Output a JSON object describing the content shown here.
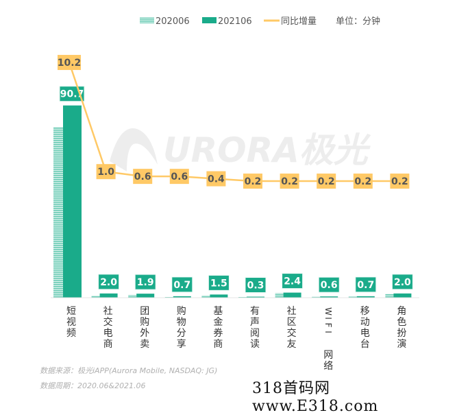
{
  "legend": {
    "s1": "202006",
    "s2": "202106",
    "line": "同比增量",
    "unit": "单位：分钟"
  },
  "watermark_logo": "AURORA极光",
  "chart_data": {
    "type": "bar",
    "categories": [
      "短视频",
      "社交电商",
      "团购外卖",
      "购物分享",
      "基金券商",
      "有声阅读",
      "社区交友",
      "WIFI网络",
      "移动电台",
      "角色扮演"
    ],
    "series": [
      {
        "name": "202006",
        "type": "bar",
        "color": "#7fd3c0",
        "pattern": "striped",
        "values": [
          80.5,
          1.0,
          1.3,
          0.1,
          1.1,
          0.1,
          2.2,
          0.4,
          0.5,
          1.8
        ]
      },
      {
        "name": "202106",
        "type": "bar",
        "color": "#1aab8a",
        "values": [
          90.7,
          2.0,
          1.9,
          0.7,
          1.5,
          0.3,
          2.4,
          0.6,
          0.7,
          2.0
        ],
        "labels": [
          "90.7",
          "2.0",
          "1.9",
          "0.7",
          "1.5",
          "0.3",
          "2.4",
          "0.6",
          "0.7",
          "2.0"
        ]
      },
      {
        "name": "同比增量",
        "type": "line",
        "color": "#ffc966",
        "values": [
          10.2,
          1.0,
          0.6,
          0.6,
          0.4,
          0.2,
          0.2,
          0.2,
          0.2,
          0.2
        ],
        "labels": [
          "10.2",
          "1.0",
          "0.6",
          "0.6",
          "0.4",
          "0.2",
          "0.2",
          "0.2",
          "0.2",
          "0.2"
        ]
      }
    ],
    "ylabel": "单位：分钟",
    "grid": false,
    "legend_position": "top-right"
  },
  "footer": {
    "source": "数据来源：极光iAPP(Aurora Mobile, NASDAQ: JG)",
    "period": "数据周期：2020.06&2021.06"
  },
  "site_watermark": "318首码网 www.E318.com"
}
